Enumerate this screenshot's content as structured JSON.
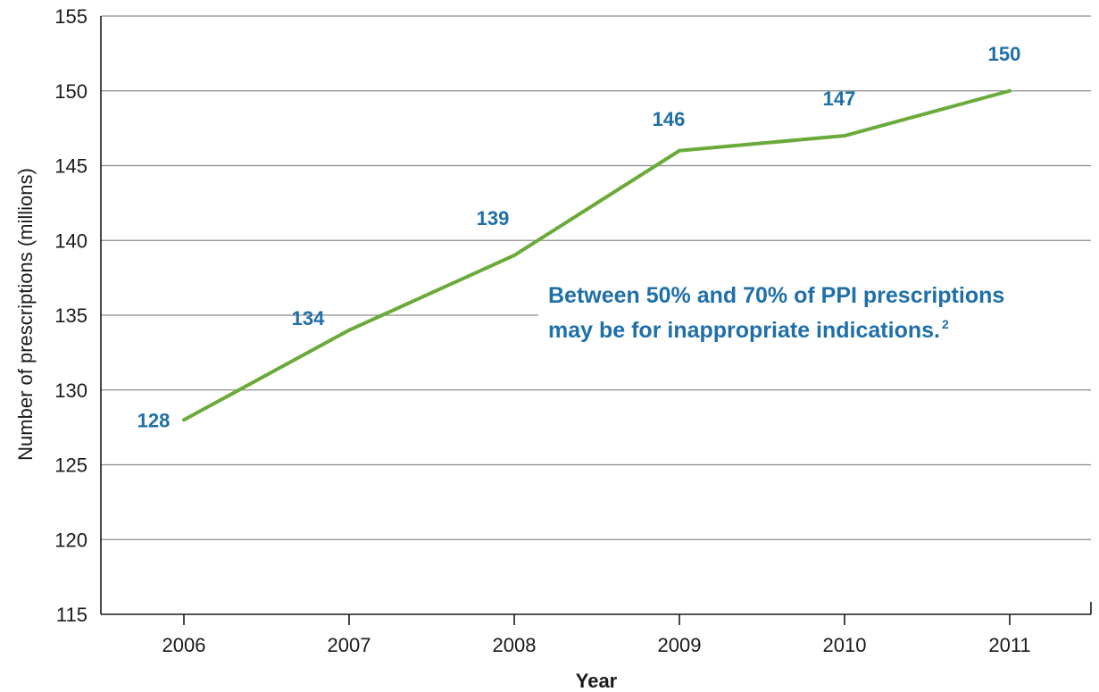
{
  "chart_data": {
    "type": "line",
    "x": [
      "2006",
      "2007",
      "2008",
      "2009",
      "2010",
      "2011"
    ],
    "series": [
      {
        "values": [
          128,
          134,
          139,
          146,
          147,
          150
        ]
      }
    ],
    "data_labels": [
      "128",
      "134",
      "139",
      "146",
      "147",
      "150"
    ],
    "xlabel": "Year",
    "ylabel": "Number of prescriptions (millions)",
    "ylim": [
      115,
      155
    ],
    "yticks": [
      115,
      120,
      125,
      130,
      135,
      140,
      145,
      150,
      155
    ],
    "grid": "horizontal",
    "annotation": {
      "line1": "Between 50% and 70% of PPI prescriptions",
      "line2": "may be for inappropriate indications.",
      "superscript": "2"
    },
    "colors": {
      "line": "#6aaa3a",
      "labels": "#1f6fa8",
      "grid": "#8c8c8c",
      "axis": "#1a1a1a"
    }
  }
}
